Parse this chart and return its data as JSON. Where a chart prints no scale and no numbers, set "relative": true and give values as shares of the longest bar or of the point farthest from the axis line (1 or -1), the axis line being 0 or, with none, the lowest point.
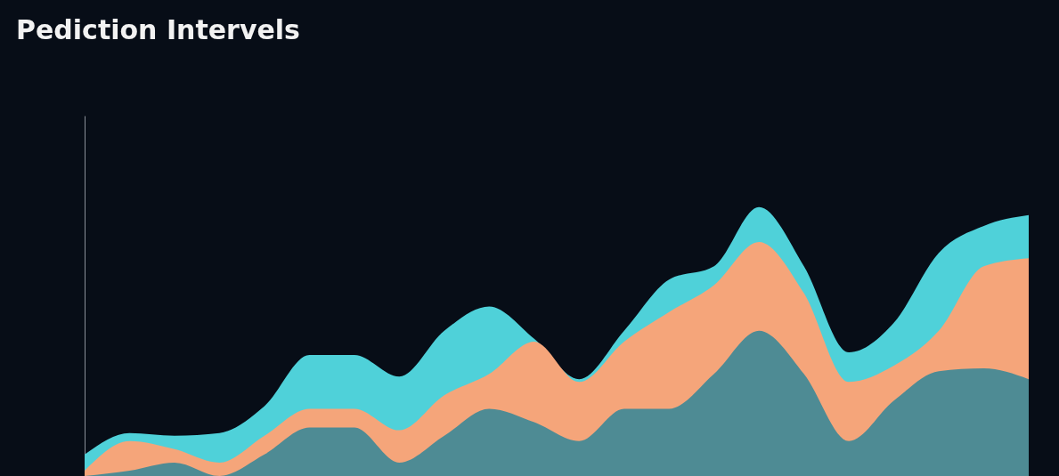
{
  "chart_data": {
    "type": "area",
    "title": "Pediction Intervels",
    "relative": true,
    "categories": [
      null,
      null,
      null,
      null,
      null,
      null,
      null,
      null,
      null,
      null,
      null,
      null,
      null,
      null,
      null,
      null,
      null,
      null,
      null,
      null,
      null,
      null
    ],
    "series": [
      {
        "color": "#4fd1d9",
        "values": [
          0.08,
          0.16,
          0.15,
          0.16,
          0.26,
          0.45,
          0.45,
          0.37,
          0.54,
          0.63,
          0.51,
          0.36,
          0.54,
          0.73,
          0.78,
          1.0,
          0.78,
          0.46,
          0.57,
          0.83,
          0.93,
          0.97
        ]
      },
      {
        "color": "#f5a57a",
        "values": [
          0.02,
          0.13,
          0.1,
          0.05,
          0.15,
          0.25,
          0.25,
          0.17,
          0.3,
          0.38,
          0.5,
          0.35,
          0.5,
          0.61,
          0.71,
          0.87,
          0.68,
          0.35,
          0.41,
          0.54,
          0.78,
          0.81
        ]
      },
      {
        "color": "#4e8b94",
        "values": [
          0,
          0.02,
          0.05,
          0,
          0.08,
          0.18,
          0.18,
          0.05,
          0.15,
          0.25,
          0.2,
          0.13,
          0.25,
          0.25,
          0.38,
          0.54,
          0.38,
          0.13,
          0.28,
          0.39,
          0.4,
          0.36
        ]
      }
    ]
  }
}
